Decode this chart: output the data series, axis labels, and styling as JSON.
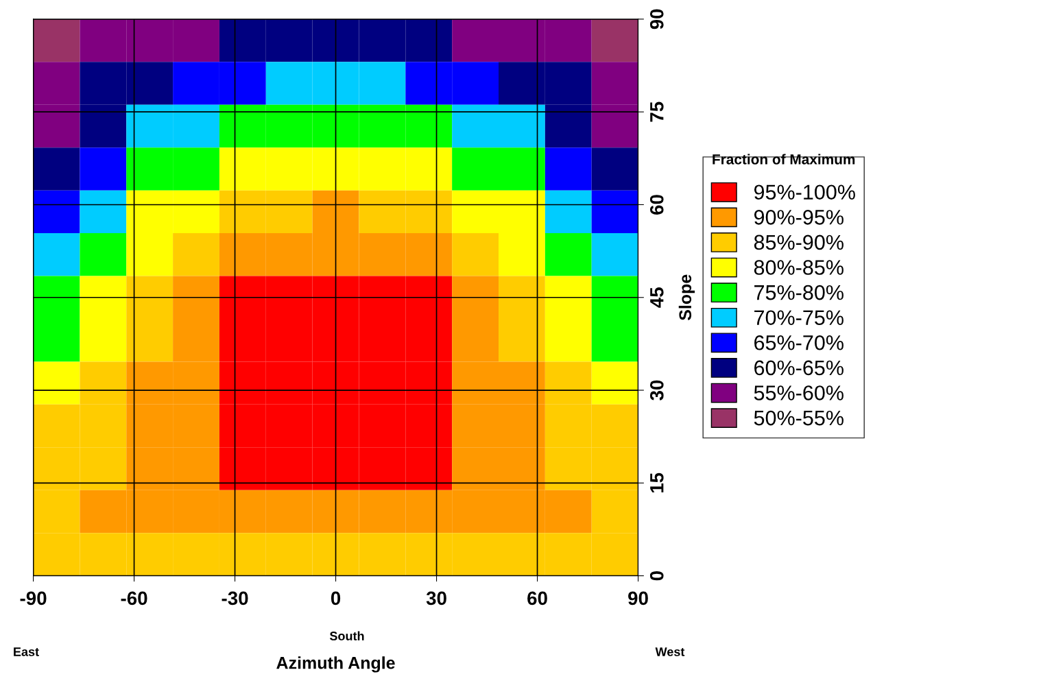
{
  "chart_data": {
    "type": "heatmap",
    "xlabel": "Azimuth Angle",
    "ylabel": "Slope",
    "legend_title": "Fraction of Maximum",
    "annotations": [
      "East",
      "South",
      "West"
    ],
    "cells": [
      [
        52.5,
        57.5,
        57.5,
        57.5,
        62.5,
        62.5,
        62.5,
        62.5,
        62.5,
        57.5,
        57.5,
        57.5,
        52.5
      ],
      [
        57.5,
        62.5,
        62.5,
        67.5,
        67.5,
        72.5,
        72.5,
        72.5,
        67.5,
        67.5,
        62.5,
        62.5,
        57.5
      ],
      [
        57.5,
        62.5,
        72.5,
        72.5,
        77.5,
        77.5,
        77.5,
        77.5,
        77.5,
        72.5,
        72.5,
        62.5,
        57.5
      ],
      [
        62.5,
        67.5,
        77.5,
        77.5,
        82.5,
        82.5,
        82.5,
        82.5,
        82.5,
        77.5,
        77.5,
        67.5,
        62.5
      ],
      [
        67.5,
        72.5,
        82.5,
        82.5,
        87.5,
        87.5,
        92.5,
        87.5,
        87.5,
        82.5,
        82.5,
        72.5,
        67.5
      ],
      [
        72.5,
        77.5,
        82.5,
        87.5,
        92.5,
        92.5,
        92.5,
        92.5,
        92.5,
        87.5,
        82.5,
        77.5,
        72.5
      ],
      [
        77.5,
        82.5,
        87.5,
        92.5,
        97.5,
        97.5,
        97.5,
        97.5,
        97.5,
        92.5,
        87.5,
        82.5,
        77.5
      ],
      [
        77.5,
        82.5,
        87.5,
        92.5,
        97.5,
        97.5,
        97.5,
        97.5,
        97.5,
        92.5,
        87.5,
        82.5,
        77.5
      ],
      [
        82.5,
        87.5,
        92.5,
        92.5,
        97.5,
        97.5,
        97.5,
        97.5,
        97.5,
        92.5,
        92.5,
        87.5,
        82.5
      ],
      [
        87.5,
        87.5,
        92.5,
        92.5,
        97.5,
        97.5,
        97.5,
        97.5,
        97.5,
        92.5,
        92.5,
        87.5,
        87.5
      ],
      [
        87.5,
        87.5,
        92.5,
        92.5,
        97.5,
        97.5,
        97.5,
        97.5,
        97.5,
        92.5,
        92.5,
        87.5,
        87.5
      ],
      [
        87.5,
        92.5,
        92.5,
        92.5,
        92.5,
        92.5,
        92.5,
        92.5,
        92.5,
        92.5,
        92.5,
        92.5,
        87.5
      ],
      [
        87.5,
        87.5,
        87.5,
        87.5,
        87.5,
        87.5,
        87.5,
        87.5,
        87.5,
        87.5,
        87.5,
        87.5,
        87.5
      ]
    ],
    "cticks": [
      {
        "value": 97.5,
        "label": "95%-100%"
      },
      {
        "value": 92.5,
        "label": "90%-95%"
      },
      {
        "value": 87.5,
        "label": "85%-90%"
      },
      {
        "value": 82.5,
        "label": "80%-85%"
      },
      {
        "value": 77.5,
        "label": "75%-80%"
      },
      {
        "value": 72.5,
        "label": "70%-75%"
      },
      {
        "value": 67.5,
        "label": "65%-70%"
      },
      {
        "value": 62.5,
        "label": "60%-65%"
      },
      {
        "value": 57.5,
        "label": "55%-60%"
      },
      {
        "value": 52.5,
        "label": "50%-55%"
      }
    ],
    "colors": [
      "#ff0000",
      "#ff9900",
      "#ffcc00",
      "#ffff00",
      "#00ff00",
      "#00ccff",
      "#0000ff",
      "#000080",
      "#800080",
      "#993366"
    ],
    "xlim": [
      -90,
      90
    ],
    "xticks": [
      -90,
      -60,
      -30,
      0,
      30,
      60,
      90
    ],
    "ylim": [
      0,
      90
    ],
    "yticks": [
      0,
      15,
      30,
      45,
      60,
      75,
      90
    ],
    "grid": true
  }
}
